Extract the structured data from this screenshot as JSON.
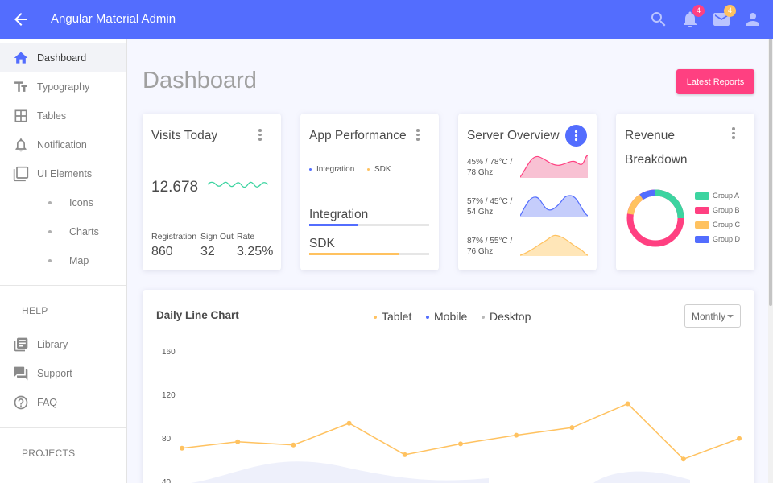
{
  "app": {
    "title": "Angular Material Admin"
  },
  "header": {
    "notifications_count": "4",
    "messages_count": "4",
    "icons": [
      "arrow-back-icon",
      "search-icon",
      "bell-icon",
      "mail-icon",
      "account-icon"
    ]
  },
  "colors": {
    "primary": "#536dfe",
    "accent": "#ff4081",
    "warning": "#ffc260",
    "success": "#3cd4a0"
  },
  "sidebar": {
    "items": [
      {
        "label": "Dashboard",
        "icon": "home-icon"
      },
      {
        "label": "Typography",
        "icon": "text-format-icon"
      },
      {
        "label": "Tables",
        "icon": "table-icon"
      },
      {
        "label": "Notification",
        "icon": "bell-icon"
      },
      {
        "label": "UI Elements",
        "icon": "layers-icon"
      }
    ],
    "sub_items": [
      {
        "label": "Icons"
      },
      {
        "label": "Charts"
      },
      {
        "label": "Map"
      }
    ],
    "help_label": "HELP",
    "help_items": [
      {
        "label": "Library",
        "icon": "library-icon"
      },
      {
        "label": "Support",
        "icon": "forum-icon"
      },
      {
        "label": "FAQ",
        "icon": "help-icon"
      }
    ],
    "projects_label": "PROJECTS"
  },
  "main": {
    "page_title": "Dashboard",
    "latest_reports_button": "Latest Reports"
  },
  "visits_card": {
    "title": "Visits Today",
    "value": "12.678",
    "stats": [
      {
        "label": "Registration",
        "value": "860"
      },
      {
        "label": "Sign Out",
        "value": "32"
      },
      {
        "label": "Rate",
        "value": "3.25%"
      }
    ]
  },
  "performance_card": {
    "title": "App Performance",
    "legend": [
      "Integration",
      "SDK"
    ],
    "bars": [
      {
        "label": "Integration",
        "fraction": 0.4
      },
      {
        "label": "SDK",
        "fraction": 0.75
      }
    ]
  },
  "server_card": {
    "title": "Server Overview",
    "rows": [
      {
        "text": "45% / 78°C / 78 Ghz"
      },
      {
        "text": "57% / 45°C / 54 Ghz"
      },
      {
        "text": "87% / 55°C / 76 Ghz"
      }
    ]
  },
  "revenue_card": {
    "title": "Revenue",
    "subtitle": "Breakdown",
    "groups": [
      "Group A",
      "Group B",
      "Group C",
      "Group D"
    ]
  },
  "daily_chart": {
    "title": "Daily Line Chart",
    "legend": [
      "Tablet",
      "Mobile",
      "Desktop"
    ],
    "period": "Monthly"
  },
  "chart_data": {
    "type": "line",
    "title": "Daily Line Chart",
    "ylim": [
      40,
      160
    ],
    "yticks": [
      "160",
      "120",
      "80",
      "40"
    ],
    "series": [
      {
        "name": "Tablet",
        "color": "#ffc260",
        "values": [
          72,
          78,
          75,
          95,
          66,
          76,
          84,
          91,
          113,
          62,
          81
        ]
      }
    ]
  }
}
